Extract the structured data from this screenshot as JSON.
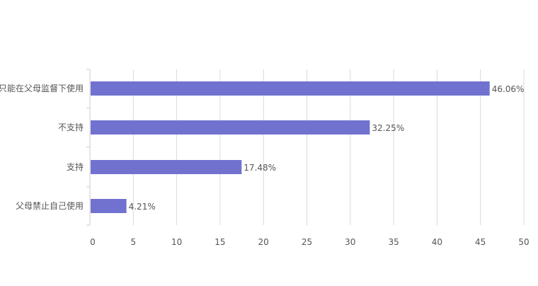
{
  "chart_data": {
    "type": "bar",
    "orientation": "horizontal",
    "categories": [
      "只能在父母监督下使用",
      "不支持",
      "支持",
      "父母禁止自己使用"
    ],
    "values": [
      46.06,
      32.25,
      17.48,
      4.21
    ],
    "value_labels": [
      "46.06%",
      "32.25%",
      "17.48%",
      "4.21%"
    ],
    "x_ticks": [
      "0",
      "5",
      "10",
      "15",
      "20",
      "25",
      "30",
      "35",
      "40",
      "45",
      "50"
    ],
    "xlim": [
      0,
      50
    ],
    "title": "",
    "xlabel": "",
    "ylabel": "",
    "grid": "vertical",
    "legend": "none",
    "bar_color": "#7172cf",
    "grid_color": "#d9d9d9",
    "axis_color": "#cccccc",
    "text_color": "#555555"
  }
}
